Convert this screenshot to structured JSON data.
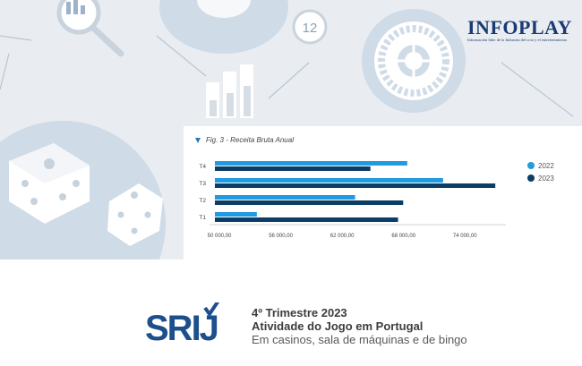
{
  "brand": {
    "name": "INFOPLAY",
    "tagline": "Información líder de la Industria del ocio y el entretenimiento"
  },
  "hero": {
    "icon_number": "12"
  },
  "figure": {
    "caption": "Fig. 3 - Receita Bruta Anual"
  },
  "chart_data": {
    "type": "bar",
    "orientation": "horizontal",
    "categories": [
      "T4",
      "T3",
      "T2",
      "T1"
    ],
    "series": [
      {
        "name": "2022",
        "color": "#1f9be0",
        "values": [
          68800,
          72300,
          63700,
          54100
        ]
      },
      {
        "name": "2023",
        "color": "#0b3d66",
        "values": [
          65200,
          77400,
          68400,
          67900
        ]
      }
    ],
    "xlim": [
      50000,
      78000
    ],
    "xticks": [
      50000,
      56000,
      62000,
      68000,
      74000
    ],
    "xtick_labels": [
      "50 000,00",
      "56 000,00",
      "62 000,00",
      "68 000,00",
      "74 000,00"
    ],
    "legend_position": "right"
  },
  "footer": {
    "logo_text": "SRIJ",
    "line1": "4º Trimestre 2023",
    "line2": "Atividade do Jogo em Portugal",
    "line3": "Em casinos, sala de máquinas e de bingo"
  }
}
